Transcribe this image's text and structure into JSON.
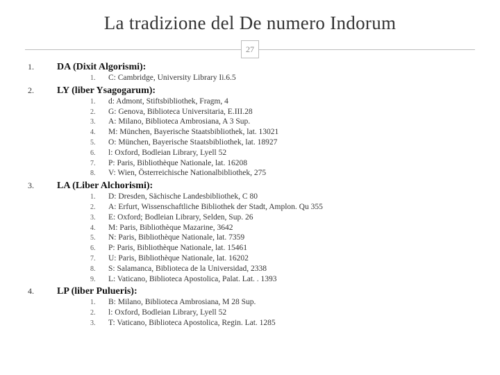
{
  "title": "La tradizione del De numero Indorum",
  "page_number": "27",
  "colors": {
    "background": "#ffffff",
    "title_color": "#333333",
    "divider_color": "#bbbbbb",
    "badge_text": "#888888",
    "section_title_color": "#111111",
    "item_text_color": "#333333"
  },
  "typography": {
    "title_fontsize_pt": 20,
    "section_title_fontsize_pt": 10.5,
    "item_fontsize_pt": 8.5,
    "font_family": "Georgia, serif"
  },
  "sections": [
    {
      "num": "1.",
      "title": "DA (Dixit Algorismi):",
      "items": [
        {
          "n": "1.",
          "t": "C: Cambridge, University Library Ii.6.5"
        }
      ]
    },
    {
      "num": "2.",
      "title": "LY (liber Ysagogarum):",
      "items": [
        {
          "n": "1.",
          "t": "d: Admont, Stiftsbibliothek, Fragm, 4"
        },
        {
          "n": "2.",
          "t": "G: Genova, Biblioteca Universitaria, E.III.28"
        },
        {
          "n": "3.",
          "t": "A: Milano, Biblioteca Ambrosiana, A 3 Sup."
        },
        {
          "n": "4.",
          "t": "M: München, Bayerische Staatsbibliothek, lat. 13021"
        },
        {
          "n": "5.",
          "t": "O: München, Bayerische Staatsbibliothek, lat. 18927"
        },
        {
          "n": "6.",
          "t": "l: Oxford, Bodleian Library, Lyell 52"
        },
        {
          "n": "7.",
          "t": "P: Paris, Bibliothèque Nationale, lat. 16208"
        },
        {
          "n": "8.",
          "t": "V: Wien, Österreichische Nationalbibliothek, 275"
        }
      ]
    },
    {
      "num": "3.",
      "title": "LA (Liber Alchorismi):",
      "items": [
        {
          "n": "1.",
          "t": "D: Dresden, Sächische Landesbibliothek, C 80"
        },
        {
          "n": "2.",
          "t": "A: Erfurt, Wissenschaftliche Bibliothek der Stadt, Amplon. Qu 355"
        },
        {
          "n": "3.",
          "t": "E: Oxford; Bodleian Library, Selden, Sup. 26"
        },
        {
          "n": "4.",
          "t": "M: Paris, Bibliothèque Mazarine, 3642"
        },
        {
          "n": "5.",
          "t": "N: Paris, Bibliothèque Nationale, lat. 7359"
        },
        {
          "n": "6.",
          "t": "P: Paris, Bibliothèque Nationale, lat. 15461"
        },
        {
          "n": "7.",
          "t": "U: Paris, Bibliothèque Nationale, lat. 16202"
        },
        {
          "n": "8.",
          "t": "S: Salamanca, Biblioteca de la Universidad, 2338"
        },
        {
          "n": "9.",
          "t": "L: Vaticano, Biblioteca Apostolica, Palat. Lat. . 1393"
        }
      ]
    },
    {
      "num": "4.",
      "title": "LP (liber Pulueris):",
      "items": [
        {
          "n": "1.",
          "t": "B: Milano, Biblioteca Ambrosiana, M 28 Sup."
        },
        {
          "n": "2.",
          "t": "l: Oxford, Bodleian Library, Lyell 52"
        },
        {
          "n": "3.",
          "t": "T: Vaticano, Biblioteca Apostolica, Regin. Lat. 1285"
        }
      ]
    }
  ]
}
